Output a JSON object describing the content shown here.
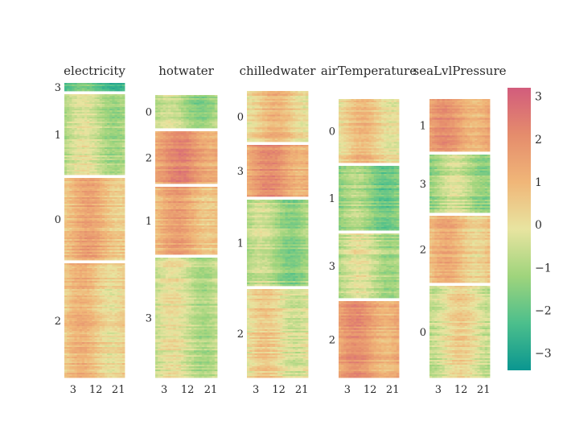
{
  "chart_data": {
    "type": "heatmap",
    "colorscale": [
      "#0a9690",
      "#4cbf8c",
      "#9fd47c",
      "#e8e4a0",
      "#f0b678",
      "#e58c6c",
      "#d25c7c"
    ],
    "colorbar": {
      "range": [
        -3.4,
        3.2
      ],
      "ticks": [
        3,
        2,
        1,
        0,
        -1,
        -2,
        -3
      ],
      "tick_labels": [
        "3",
        "2",
        "1",
        "0",
        "−1",
        "−2",
        "−3"
      ]
    },
    "x_tick_labels": [
      "3",
      "12",
      "21"
    ],
    "x_tick_hours": [
      3,
      12,
      21
    ],
    "hours": 24,
    "panels": [
      {
        "title": "electricity",
        "clusters": [
          {
            "label": "3",
            "mean": -2.2,
            "rows": 12
          },
          {
            "label": "1",
            "mean": -0.6,
            "rows": 100
          },
          {
            "label": "0",
            "mean": 1.0,
            "rows": 100
          },
          {
            "label": "2",
            "mean": 0.6,
            "rows": 140
          }
        ]
      },
      {
        "title": "hotwater",
        "clusters": [
          {
            "label": "0",
            "mean": -1.0,
            "rows": 40
          },
          {
            "label": "2",
            "mean": 1.7,
            "rows": 65
          },
          {
            "label": "1",
            "mean": 1.1,
            "rows": 85
          },
          {
            "label": "3",
            "mean": -0.5,
            "rows": 150
          }
        ]
      },
      {
        "title": "chilledwater",
        "clusters": [
          {
            "label": "0",
            "mean": 0.6,
            "rows": 65
          },
          {
            "label": "3",
            "mean": 1.6,
            "rows": 65
          },
          {
            "label": "1",
            "mean": -1.0,
            "rows": 110
          },
          {
            "label": "2",
            "mean": 0.1,
            "rows": 110
          }
        ]
      },
      {
        "title": "airTemperature",
        "clusters": [
          {
            "label": "0",
            "mean": 0.5,
            "rows": 80
          },
          {
            "label": "1",
            "mean": -1.4,
            "rows": 80
          },
          {
            "label": "3",
            "mean": -0.6,
            "rows": 80
          },
          {
            "label": "2",
            "mean": 1.5,
            "rows": 95
          }
        ]
      },
      {
        "title": "seaLvlPressure",
        "clusters": [
          {
            "label": "1",
            "mean": 1.5,
            "rows": 65
          },
          {
            "label": "3",
            "mean": -0.9,
            "rows": 75
          },
          {
            "label": "2",
            "mean": 0.8,
            "rows": 85
          },
          {
            "label": "0",
            "mean": -0.1,
            "rows": 110
          }
        ]
      }
    ]
  }
}
